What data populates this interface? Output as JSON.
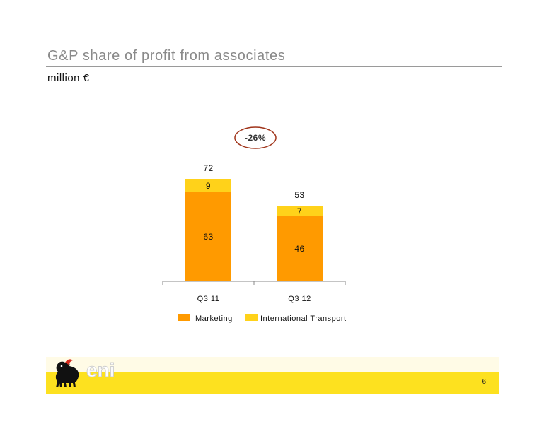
{
  "header": {
    "title": "G&P share of profit from associates",
    "subtitle": "million €"
  },
  "footer": {
    "brand": "eni",
    "page_number": "6"
  },
  "change_badge": "-26%",
  "colors": {
    "marketing": "#ff9a00",
    "international_transport": "#ffd21a",
    "badge_outline": "#a0341a",
    "footer_band": "#fde11f"
  },
  "chart_data": {
    "type": "bar",
    "stacked": true,
    "categories": [
      "Q3 11",
      "Q3 12"
    ],
    "series": [
      {
        "name": "Marketing",
        "values": [
          63,
          46
        ]
      },
      {
        "name": "International Transport",
        "values": [
          9,
          7
        ]
      }
    ],
    "totals": [
      "72",
      "53"
    ],
    "legend_position": "bottom",
    "grid": false
  }
}
